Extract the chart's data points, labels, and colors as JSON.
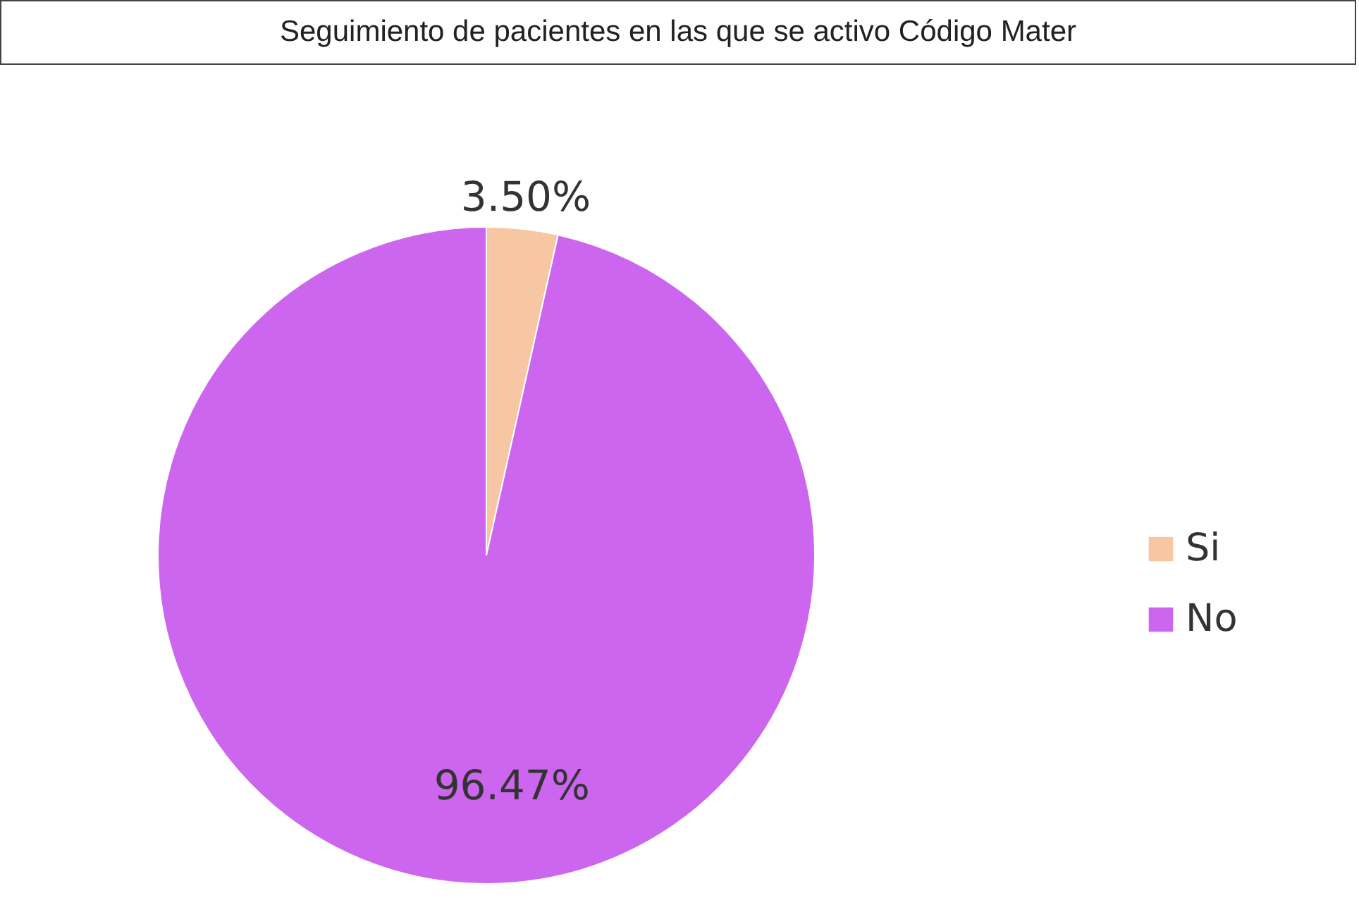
{
  "chart_data": {
    "type": "pie",
    "title": "Seguimiento de pacientes en las que se activo Código Mater",
    "categories": [
      "Si",
      "No"
    ],
    "values": [
      3.5,
      96.47
    ],
    "colors": [
      "#f7c6a3",
      "#cc66ee"
    ],
    "value_labels": [
      "3.50%",
      "96.47%"
    ],
    "legend": "right"
  }
}
